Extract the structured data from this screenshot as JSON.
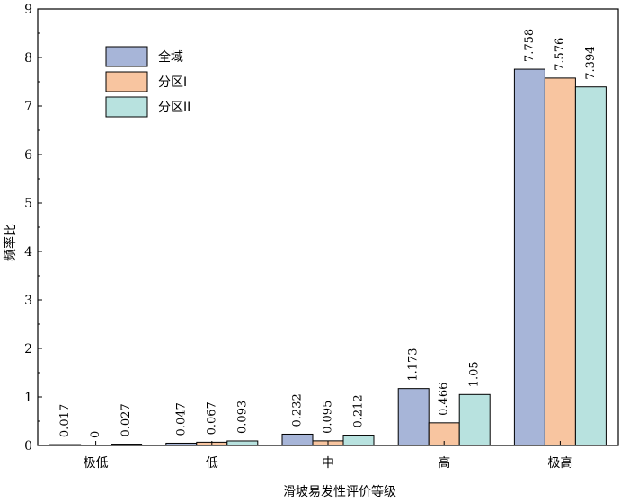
{
  "chart_data": {
    "type": "bar",
    "title": "",
    "xlabel": "滑坡易发性评价等级",
    "ylabel": "频率比",
    "categories": [
      "极低",
      "低",
      "中",
      "高",
      "极高"
    ],
    "ylim": [
      0,
      9
    ],
    "yticks": [
      "0",
      "1",
      "2",
      "3",
      "4",
      "5",
      "6",
      "7",
      "8",
      "9"
    ],
    "grid": false,
    "legend_position": "top-left",
    "series": [
      {
        "name": "全域",
        "color": "#a7b5d8",
        "values": [
          0.017,
          0.047,
          0.232,
          1.173,
          7.758
        ],
        "labels": [
          "0.017",
          "0.047",
          "0.232",
          "1.173",
          "7.758"
        ]
      },
      {
        "name": "分区I",
        "color": "#f8c5a0",
        "values": [
          0,
          0.067,
          0.095,
          0.466,
          7.576
        ],
        "labels": [
          "0",
          "0.067",
          "0.095",
          "0.466",
          "7.576"
        ]
      },
      {
        "name": "分区II",
        "color": "#b8e2df",
        "values": [
          0.027,
          0.093,
          0.212,
          1.05,
          7.394
        ],
        "labels": [
          "0.027",
          "0.093",
          "0.212",
          "1.05",
          "7.394"
        ]
      }
    ]
  }
}
